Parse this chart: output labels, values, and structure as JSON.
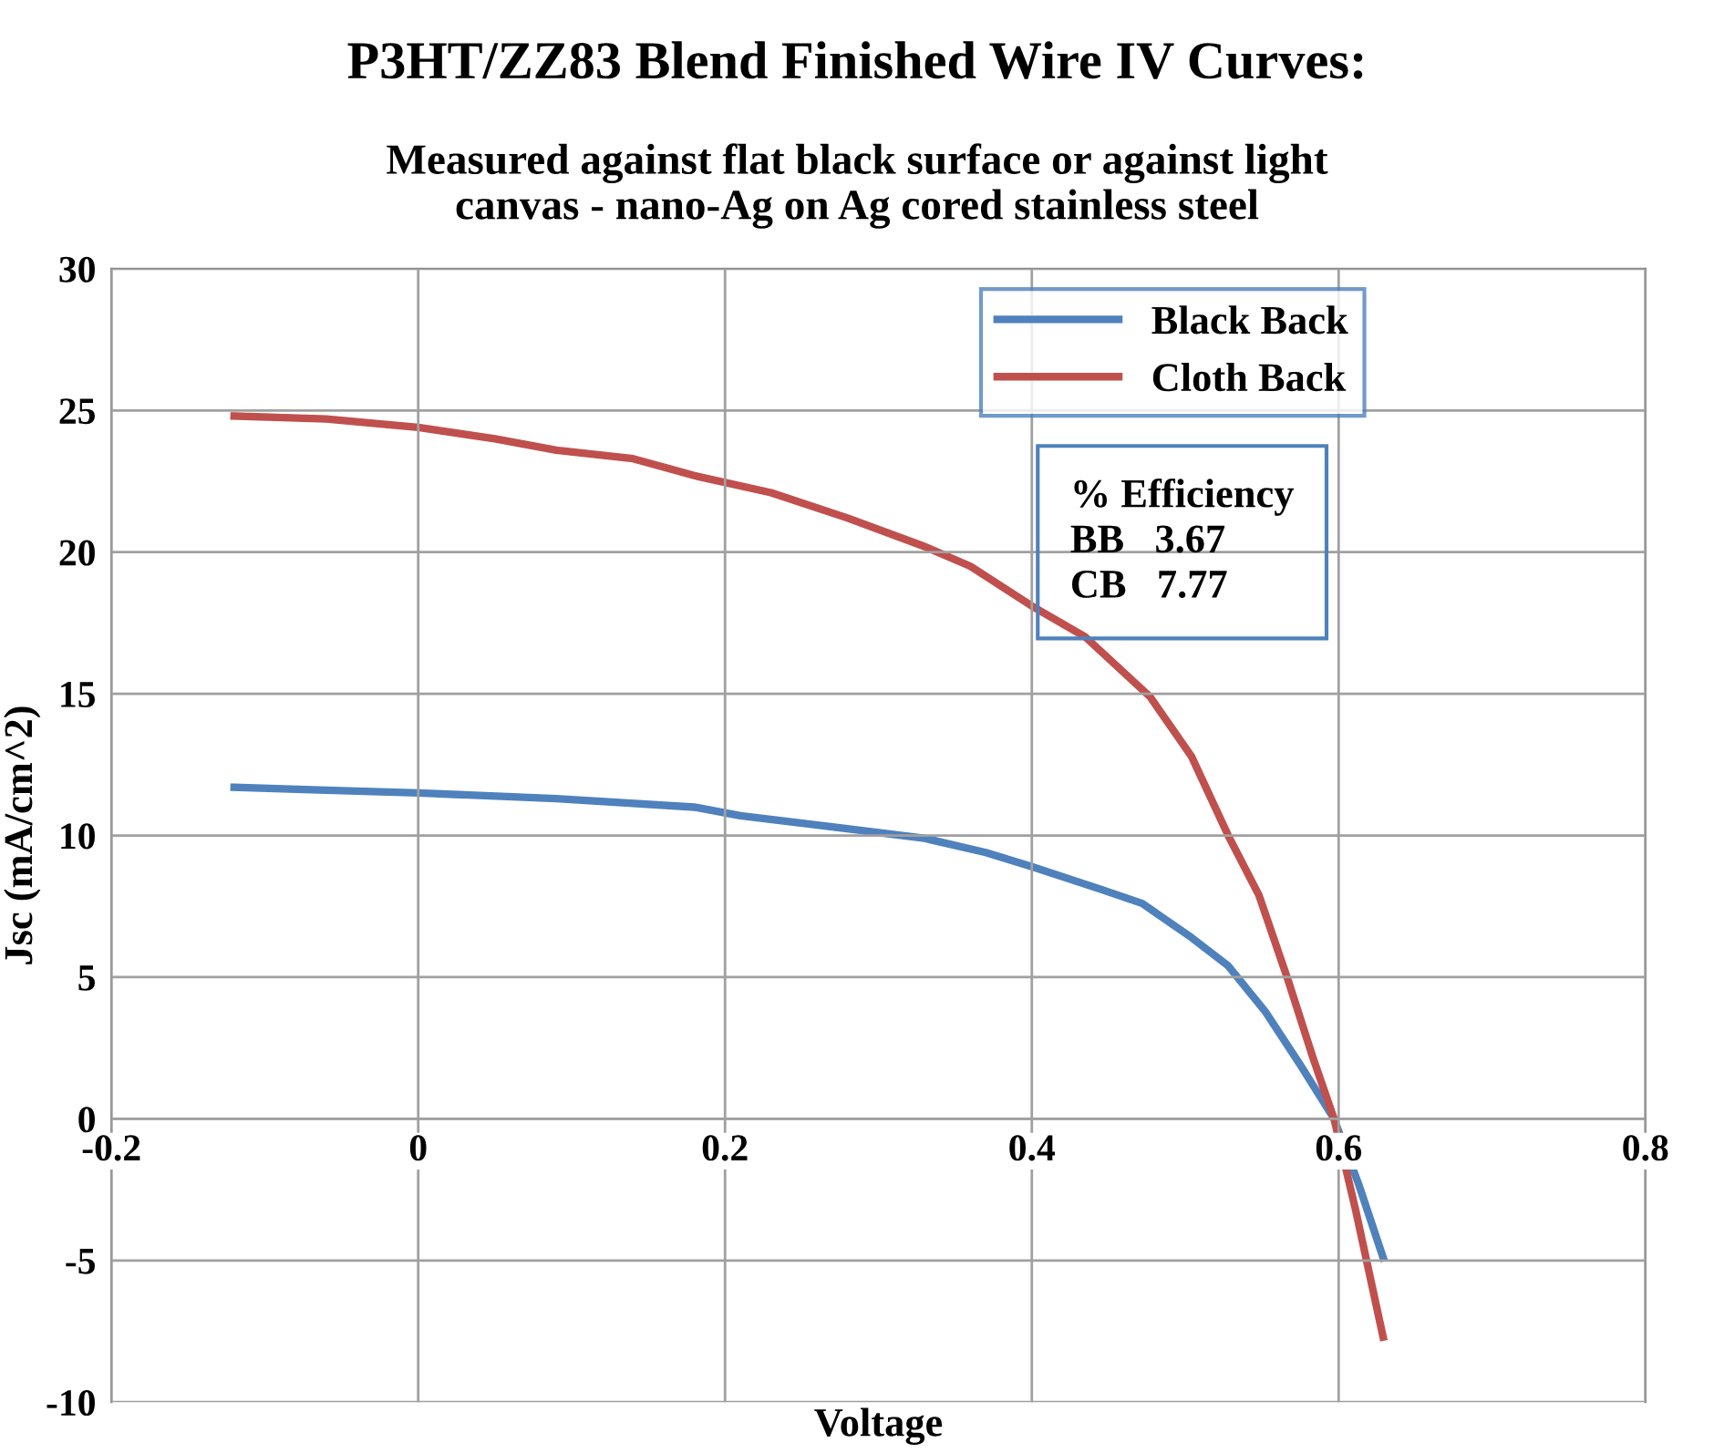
{
  "chart_data": {
    "type": "line",
    "title": "P3HT/ZZ83 Blend Finished Wire IV Curves:",
    "subtitle": "Measured against flat black surface or against light\ncanvas - nano-Ag on Ag cored stainless steel",
    "xlabel": "Voltage",
    "ylabel": "Jsc (mA/cm^2)",
    "xlim": [
      -0.2,
      0.8
    ],
    "xticks": [
      -0.2,
      0,
      0.2,
      0.4,
      0.6,
      0.8
    ],
    "ylim": [
      -10,
      30
    ],
    "yticks": [
      -10,
      -5,
      0,
      5,
      10,
      15,
      20,
      25,
      30
    ],
    "grid": true,
    "legend": "top right",
    "marker": "none",
    "line_style": "solid",
    "annotations": [
      "% Efficiency\nBB   3.67\nCB   7.77"
    ],
    "series": [
      {
        "name": "Black Back",
        "color": "#4f81bd",
        "x": [
          -0.12,
          -0.06,
          0,
          0.09,
          0.18,
          0.21,
          0.27,
          0.33,
          0.37,
          0.4,
          0.445,
          0.472,
          0.504,
          0.528,
          0.552,
          0.575,
          0.597,
          0.613,
          0.629
        ],
        "values": [
          11.7,
          11.6,
          11.5,
          11.3,
          11.0,
          10.7,
          10.3,
          9.9,
          9.4,
          8.9,
          8.1,
          7.6,
          6.4,
          5.4,
          3.8,
          1.9,
          0,
          -2.3,
          -4.9
        ]
      },
      {
        "name": "Cloth Back",
        "color": "#c0504d",
        "x": [
          -0.12,
          -0.06,
          0,
          0.05,
          0.09,
          0.14,
          0.18,
          0.23,
          0.28,
          0.33,
          0.36,
          0.4,
          0.435,
          0.477,
          0.504,
          0.528,
          0.548,
          0.567,
          0.583,
          0.597,
          0.611,
          0.629
        ],
        "values": [
          24.8,
          24.7,
          24.4,
          24.0,
          23.6,
          23.3,
          22.7,
          22.1,
          21.2,
          20.2,
          19.5,
          18.1,
          17.0,
          14.9,
          12.8,
          10.0,
          7.9,
          4.9,
          2.2,
          0,
          -3.2,
          -7.7
        ]
      }
    ]
  }
}
